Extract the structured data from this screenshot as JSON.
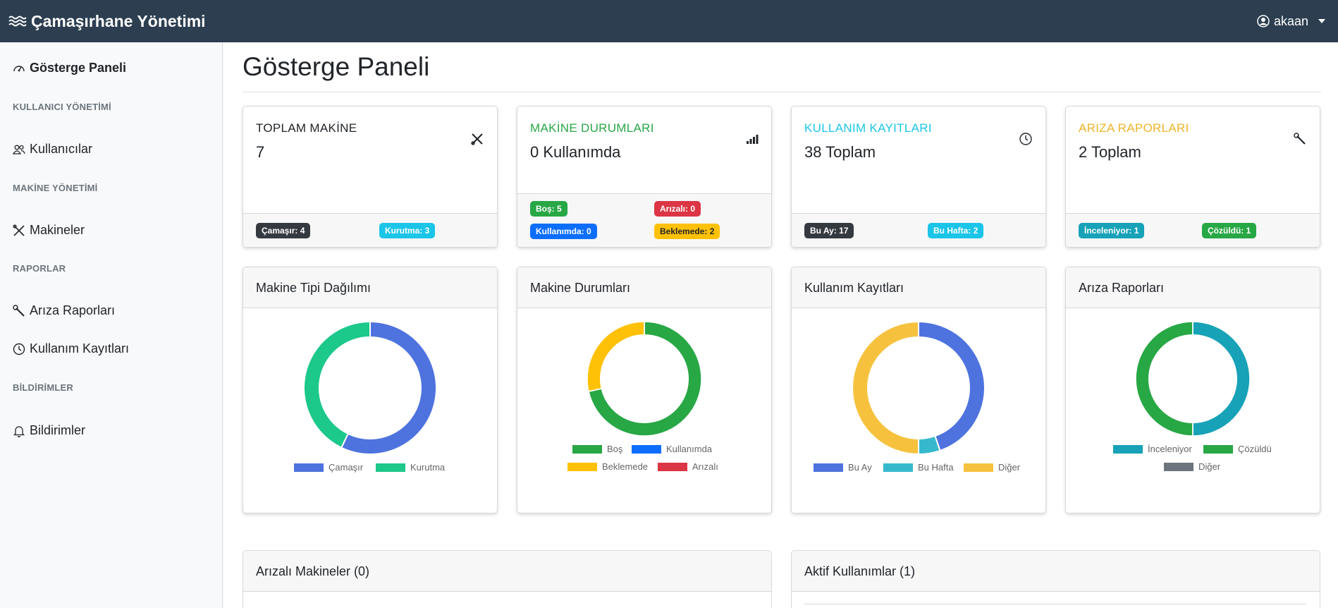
{
  "navbar": {
    "brand": "Çamaşırhane Yönetimi",
    "user": "akaan"
  },
  "sidebar": {
    "dashboard": "Gösterge Paneli",
    "section_users": "KULLANICI YÖNETİMİ",
    "users": "Kullanıcılar",
    "section_machines": "MAKİNE YÖNETİMİ",
    "machines": "Makineler",
    "section_reports": "RAPORLAR",
    "fault_reports": "Arıza Raporları",
    "usage_records": "Kullanım Kayıtları",
    "section_notifications": "BİLDİRİMLER",
    "notifications": "Bildirimler"
  },
  "page": {
    "title": "Gösterge Paneli"
  },
  "stats": {
    "total_machines": {
      "label": "TOPLAM MAKİNE",
      "value": "7",
      "badge1": "Çamaşır: 4",
      "badge2": "Kurutma: 3"
    },
    "machine_status": {
      "label": "MAKİNE DURUMLARI",
      "value": "0 Kullanımda",
      "idle": "Boş: 5",
      "faulty": "Arızalı: 0",
      "in_use": "Kullanımda: 0",
      "waiting": "Beklemede: 2"
    },
    "usage": {
      "label": "KULLANIM KAYITLARI",
      "value": "38 Toplam",
      "month": "Bu Ay: 17",
      "week": "Bu Hafta: 2"
    },
    "faults": {
      "label": "ARIZA RAPORLARI",
      "value": "2 Toplam",
      "reviewing": "İnceleniyor: 1",
      "resolved": "Çözüldü: 1"
    }
  },
  "colors": {
    "accent_green": "#28a745",
    "accent_cyan": "#1bc5e8",
    "accent_yellow": "#ffc107",
    "chart_blue": "#4e73df",
    "chart_green": "#1cc88a",
    "chart_teal": "#36b9cc",
    "chart_amber": "#f6c23e"
  },
  "charts": {
    "machine_type": {
      "title": "Makine Tipi Dağılımı"
    },
    "machine_status": {
      "title": "Makine Durumları"
    },
    "usage": {
      "title": "Kullanım Kayıtları"
    },
    "faults": {
      "title": "Arıza Raporları"
    }
  },
  "chart_data": [
    {
      "type": "pie",
      "title": "Makine Tipi Dağılımı",
      "categories": [
        "Çamaşır",
        "Kurutma"
      ],
      "values": [
        4,
        3
      ],
      "colors": [
        "#4e73df",
        "#1cc88a"
      ],
      "legend": "bottom"
    },
    {
      "type": "pie",
      "title": "Makine Durumları",
      "categories": [
        "Boş",
        "Kullanımda",
        "Beklemede",
        "Arızalı"
      ],
      "values": [
        5,
        0,
        2,
        0
      ],
      "colors": [
        "#28a745",
        "#0d6efd",
        "#ffc107",
        "#dc3545"
      ],
      "legend": "bottom"
    },
    {
      "type": "pie",
      "title": "Kullanım Kayıtları",
      "categories": [
        "Bu Ay",
        "Bu Hafta",
        "Diğer"
      ],
      "values": [
        17,
        2,
        19
      ],
      "colors": [
        "#4e73df",
        "#36b9cc",
        "#f6c23e"
      ],
      "legend": "bottom"
    },
    {
      "type": "pie",
      "title": "Arıza Raporları",
      "categories": [
        "İnceleniyor",
        "Çözüldü",
        "Diğer"
      ],
      "values": [
        1,
        1,
        0
      ],
      "colors": [
        "#17a2b8",
        "#28a745",
        "#6c757d"
      ],
      "legend": "bottom"
    }
  ],
  "bottom": {
    "faulty_machines": "Arızalı Makineler (0)",
    "active_usages": "Aktif Kullanımlar (1)"
  }
}
